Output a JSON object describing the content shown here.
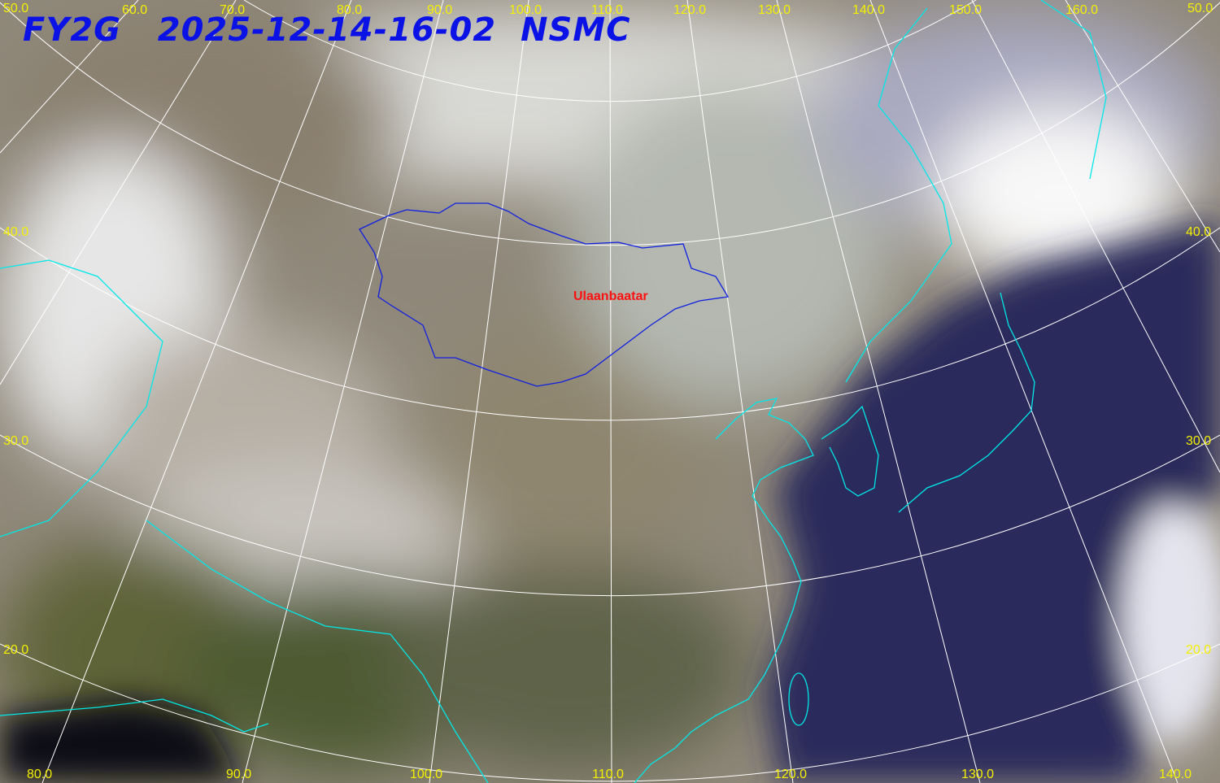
{
  "title": {
    "satellite": "FY2G",
    "datetime": "2025-12-14-16-02",
    "agency": "NSMC"
  },
  "city_label": "Ulaanbaatar",
  "top_longitude_labels": [
    "50.0",
    "60.0",
    "70.0",
    "80.0",
    "90.0",
    "100.0",
    "110.0",
    "120.0",
    "130.0",
    "140.0",
    "150.0",
    "160.0",
    "50.0"
  ],
  "bottom_longitude_labels": [
    "80.0",
    "90.0",
    "100.0",
    "110.0",
    "120.0",
    "130.0",
    "140.0"
  ],
  "left_latitude_labels": [
    "40.0",
    "30.0",
    "20.0"
  ],
  "right_latitude_labels": [
    "40.0",
    "30.0",
    "20.0"
  ],
  "colors": {
    "label": "#f4f000",
    "title": "#0a12e6",
    "coastline": "#00e8e8",
    "border": "#1020e0",
    "city": "#ff1010",
    "graticule": "#ffffff",
    "ocean": "#2a2a5a"
  }
}
